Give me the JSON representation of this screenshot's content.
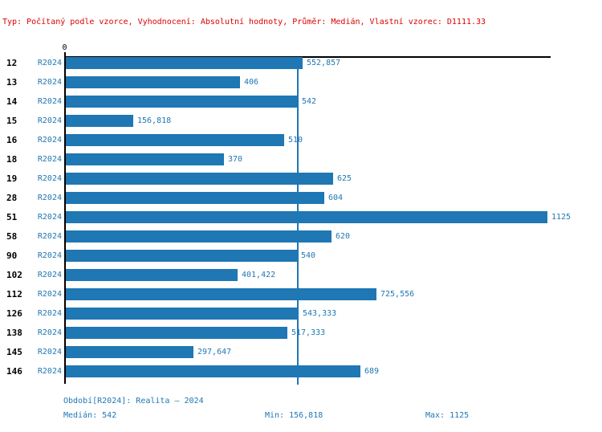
{
  "header": {
    "text": "Typ: Počítaný podle vzorce, Vyhodnocení: Absolutní hodnoty, Průměr: Medián, Vlastní vzorec: D1111.33"
  },
  "chart_data": {
    "type": "bar",
    "orientation": "horizontal",
    "title": "",
    "xlabel": "",
    "ylabel": "",
    "origin_tick_label": "0",
    "series_label": "R2024",
    "categories": [
      "12",
      "13",
      "14",
      "15",
      "16",
      "18",
      "19",
      "28",
      "51",
      "58",
      "90",
      "102",
      "112",
      "126",
      "138",
      "145",
      "146"
    ],
    "values": [
      552.857,
      406,
      542,
      156.818,
      510,
      370,
      625,
      604,
      1125,
      620,
      540,
      401.422,
      725.556,
      543.333,
      517.333,
      297.647,
      689
    ],
    "value_labels": [
      "552,857",
      "406",
      "542",
      "156,818",
      "510",
      "370",
      "625",
      "604",
      "1125",
      "620",
      "540",
      "401,422",
      "725,556",
      "543,333",
      "517,333",
      "297,647",
      "689"
    ],
    "xlim": [
      0,
      1134
    ],
    "grid": false,
    "legend": false,
    "reference_line": {
      "name": "Medián",
      "value": 542
    },
    "bar_color": "#1f77b4"
  },
  "footer": {
    "period": "Období[R2024]: Realita – 2024",
    "median": "Medián: 542",
    "min": "Min: 156,818",
    "max": "Max: 1125"
  },
  "colors": {
    "accent_blue": "#1f77b4",
    "header_red": "#dd0000",
    "axis_black": "#000000",
    "background": "#ffffff"
  }
}
